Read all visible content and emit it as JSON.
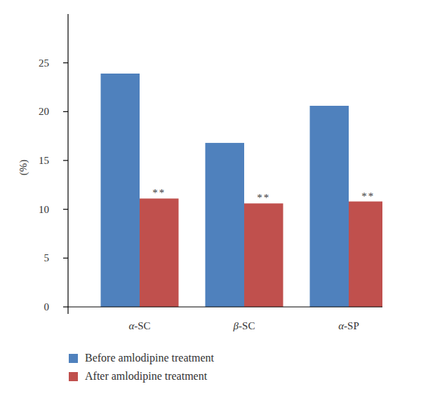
{
  "chart_data": {
    "type": "bar",
    "y_label": "(%)",
    "categories": [
      "α-SC",
      "β-SC",
      "α-SP"
    ],
    "series": [
      {
        "name": "Before amlodipine treatment",
        "color": "#4f81bd",
        "values": [
          23.9,
          16.8,
          20.6
        ]
      },
      {
        "name": "After amlodipine treatment",
        "color": "#c0504d",
        "values": [
          11.1,
          10.6,
          10.8
        ]
      }
    ],
    "annotations": [
      {
        "text": "**",
        "category": "α-SC",
        "series": "After amlodipine treatment"
      },
      {
        "text": "**",
        "category": "β-SC",
        "series": "After amlodipine treatment"
      },
      {
        "text": "**",
        "category": "α-SP",
        "series": "After amlodipine treatment"
      }
    ],
    "ylim": [
      0,
      30
    ],
    "yticks": [
      0,
      5,
      10,
      15,
      20,
      25
    ],
    "grid": false,
    "legend": "bottom"
  }
}
